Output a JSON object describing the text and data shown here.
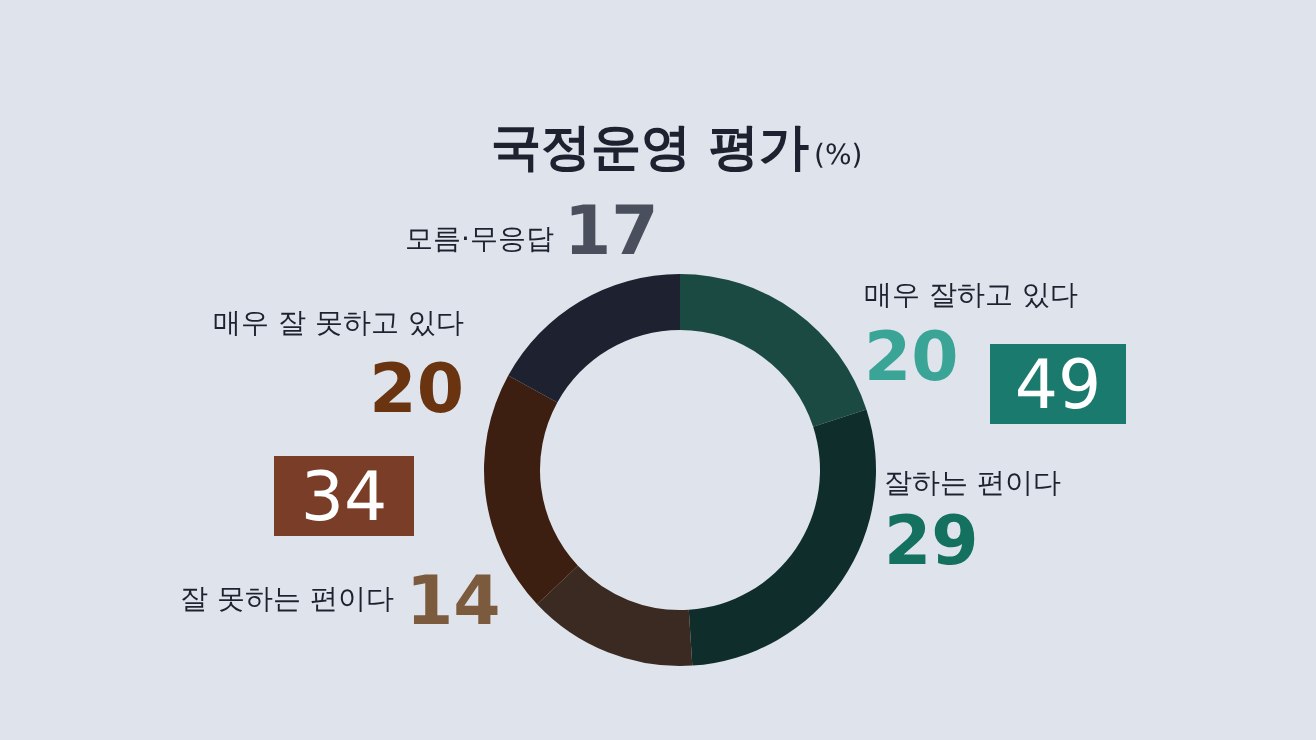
{
  "chart_data": {
    "type": "donut",
    "title": "국정운영 평가",
    "subtitle": "(%)",
    "categories": [
      "매우 잘하고 있다",
      "잘하는 편이다",
      "잘 못하는 편이다",
      "매우 잘 못하고 있다",
      "모름·무응답"
    ],
    "values": [
      20,
      29,
      14,
      20,
      17
    ],
    "colors": [
      "#1b4a43",
      "#0f2d2a",
      "#3a2a21",
      "#3c1f10",
      "#1e2130"
    ],
    "data_labels": true,
    "annotations": [
      "49",
      "34"
    ]
  }
}
